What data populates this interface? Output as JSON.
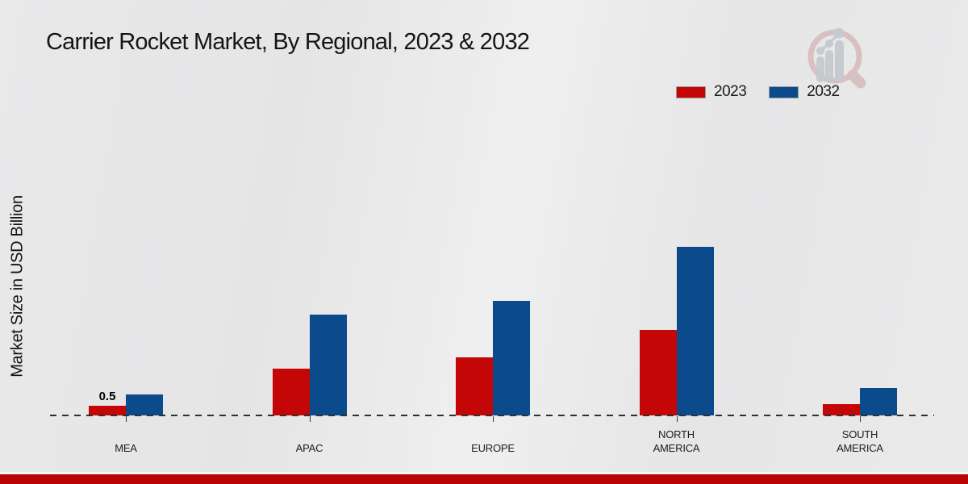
{
  "chart_data": {
    "type": "bar",
    "title": "Carrier Rocket Market, By Regional, 2023 & 2032",
    "xlabel": "",
    "ylabel": "Market Size in USD Billion",
    "categories": [
      "MEA",
      "APAC",
      "EUROPE",
      "NORTH AMERICA",
      "SOUTH AMERICA"
    ],
    "category_lines": [
      [
        "MEA"
      ],
      [
        "APAC"
      ],
      [
        "EUROPE"
      ],
      [
        "NORTH",
        "AMERICA"
      ],
      [
        "SOUTH",
        "AMERICA"
      ]
    ],
    "series": [
      {
        "name": "2023",
        "color": "#c40606",
        "values": [
          0.5,
          2.4,
          3.0,
          4.4,
          0.6
        ]
      },
      {
        "name": "2032",
        "color": "#0b4a8b",
        "values": [
          1.1,
          5.2,
          5.9,
          8.7,
          1.4
        ]
      }
    ],
    "value_labels": [
      {
        "category_index": 0,
        "series_index": 0,
        "text": "0.5"
      }
    ],
    "ylim": [
      0,
      10
    ],
    "grid": false,
    "legend_position": "top-right",
    "baseline_style": "dashed"
  },
  "colors": {
    "background": "#e7e7e8",
    "baseline": "#303030",
    "footer_bar": "#b80404",
    "logo_ring": "#cc9a9a",
    "logo_bars": "#c6c9ce"
  }
}
